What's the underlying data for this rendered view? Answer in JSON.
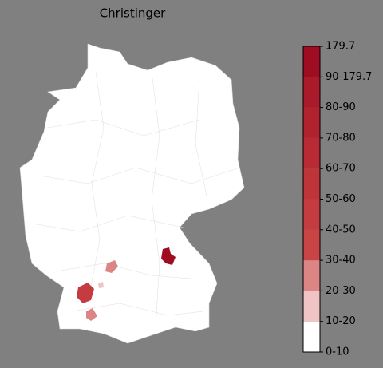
{
  "map": {
    "title": "Christinger",
    "legend": {
      "labels": [
        "0-10",
        "10-20",
        "20-30",
        "30-40",
        "40-50",
        "50-60",
        "60-70",
        "70-80",
        "80-90",
        "90-179.7",
        "179.7"
      ],
      "colors": [
        "#ffffff",
        "#f0c4c4",
        "#dc8585",
        "#c94545",
        "#c43c3f",
        "#bf3439",
        "#b82b34",
        "#b1222f",
        "#a91a2a",
        "#9e0d21"
      ]
    }
  }
}
